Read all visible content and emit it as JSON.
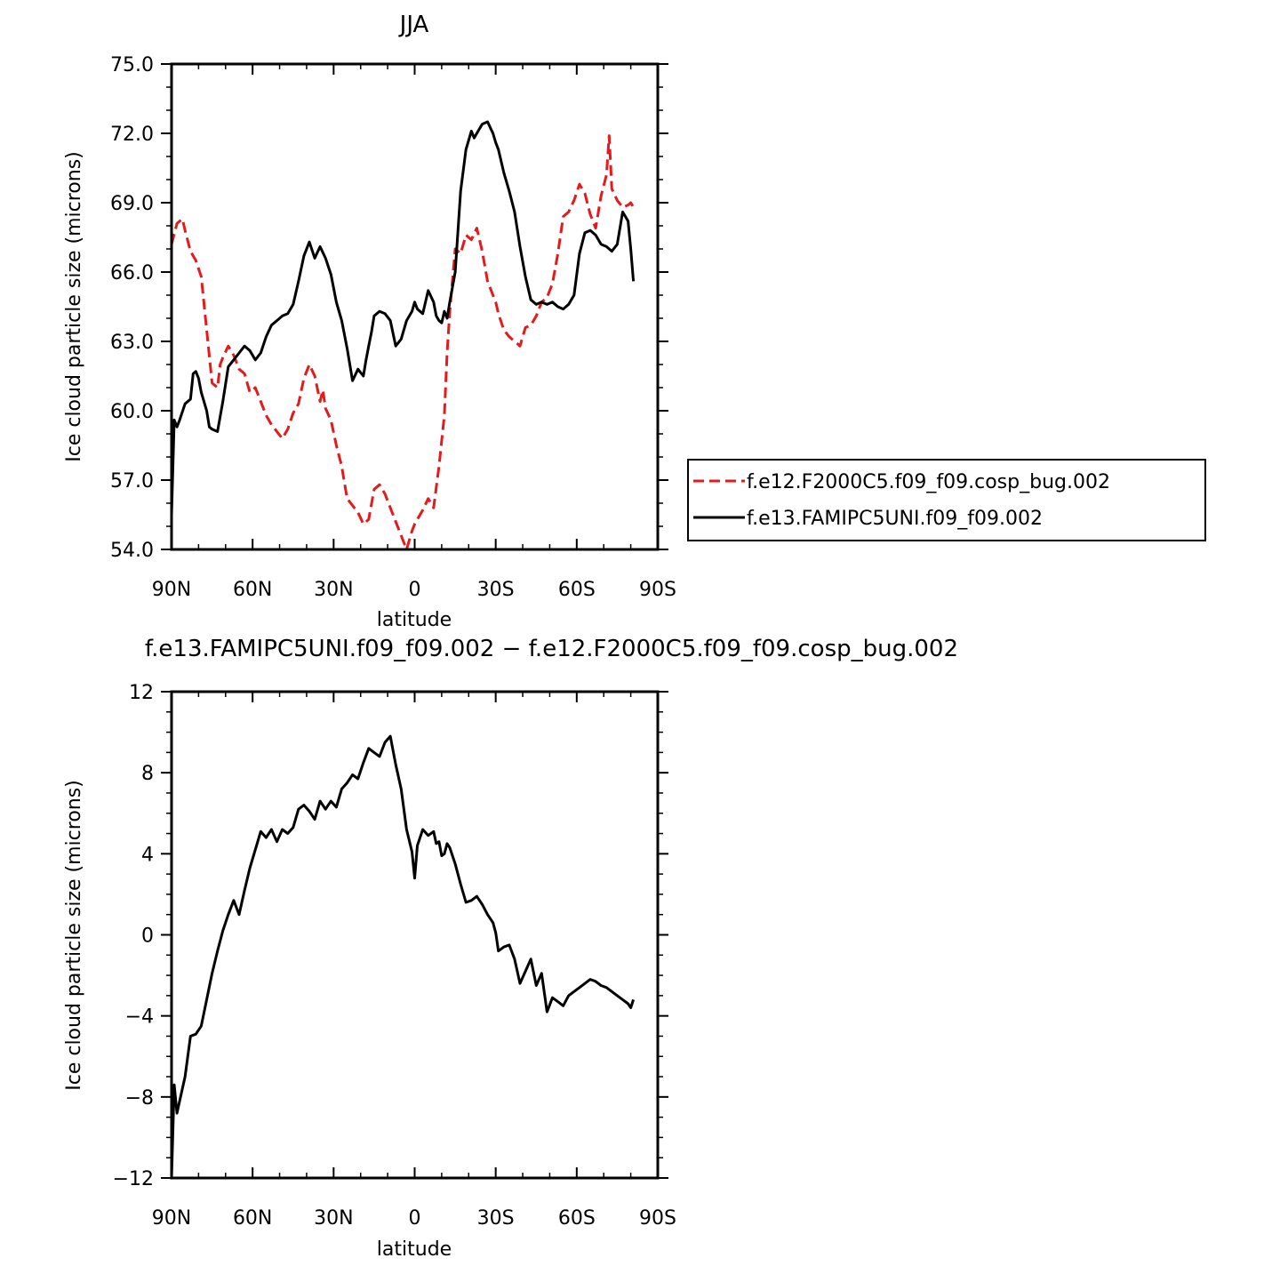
{
  "colors": {
    "dashed_series": "#e41a1c",
    "solid_series": "#000000",
    "background": "#ffffff"
  },
  "chart_data": [
    {
      "type": "line",
      "title": "JJA",
      "xlabel": "latitude",
      "ylabel": "Ice cloud particle size (microns)",
      "xlim": [
        -90,
        90
      ],
      "ylim": [
        54.0,
        75.0
      ],
      "x_ticks": [
        -90,
        -60,
        -30,
        0,
        30,
        60,
        90
      ],
      "x_tick_labels": [
        "90N",
        "60N",
        "30N",
        "0",
        "30S",
        "60S",
        "90S"
      ],
      "y_ticks": [
        54,
        57,
        60,
        63,
        66,
        69,
        72,
        75
      ],
      "y_tick_labels": [
        "54.0",
        "57.0",
        "60.0",
        "63.0",
        "66.0",
        "69.0",
        "72.0",
        "75.0"
      ],
      "grid": false,
      "legend_position": "right",
      "series": [
        {
          "name": "f.e12.F2000C5.f09_f09.cosp_bug.002",
          "style": "dashed",
          "color": "#e41a1c",
          "x": [
            -90,
            -88,
            -86,
            -85,
            -83,
            -81,
            -79,
            -77,
            -75,
            -73,
            -72,
            -71,
            -69,
            -67,
            -65,
            -63,
            -61,
            -59,
            -57,
            -55,
            -53,
            -51,
            -49,
            -47,
            -45,
            -43,
            -41,
            -39,
            -37,
            -35,
            -34,
            -33,
            -31,
            -29,
            -27,
            -25,
            -23,
            -21,
            -19,
            -17,
            -15,
            -13,
            -11,
            -9,
            -7,
            -5,
            -3,
            -1,
            0,
            1,
            3,
            5,
            7,
            9,
            11,
            12,
            13,
            15,
            17,
            19,
            21,
            23,
            25,
            27,
            29,
            30,
            31,
            33,
            35,
            37,
            39,
            41,
            43,
            45,
            47,
            49,
            51,
            53,
            55,
            57,
            59,
            61,
            63,
            65,
            67,
            69,
            71,
            72,
            73,
            75,
            77,
            79,
            80,
            81
          ],
          "values": [
            67.2,
            68.1,
            68.3,
            67.8,
            66.9,
            66.5,
            65.8,
            63.5,
            61.2,
            61.0,
            62.0,
            62.3,
            62.8,
            62.4,
            61.8,
            61.6,
            60.8,
            61.0,
            60.4,
            59.8,
            59.4,
            59.1,
            58.8,
            59.2,
            59.9,
            60.3,
            61.4,
            62.0,
            61.5,
            60.4,
            60.9,
            60.1,
            59.6,
            58.5,
            57.6,
            56.2,
            55.9,
            55.6,
            55.1,
            55.3,
            56.6,
            56.8,
            56.4,
            55.8,
            55.2,
            54.6,
            54.0,
            54.8,
            55.1,
            55.3,
            55.7,
            56.2,
            55.8,
            57.6,
            59.8,
            62.5,
            64.3,
            67.0,
            66.8,
            67.6,
            67.4,
            67.9,
            66.9,
            65.6,
            65.0,
            64.7,
            64.2,
            63.5,
            63.2,
            63.0,
            62.8,
            63.6,
            63.7,
            64.1,
            64.7,
            64.9,
            65.5,
            66.8,
            68.4,
            68.6,
            69.1,
            69.8,
            69.4,
            68.5,
            67.9,
            69.3,
            70.2,
            71.9,
            69.6,
            69.1,
            68.8,
            68.9,
            69.0,
            68.8
          ]
        },
        {
          "name": "f.e13.FAMIPC5UNI.f09_f09.002",
          "style": "solid",
          "color": "#000000",
          "x": [
            -90,
            -89,
            -88,
            -87,
            -85,
            -83,
            -82,
            -81,
            -80,
            -79,
            -77,
            -76,
            -75,
            -73,
            -71,
            -69,
            -67,
            -65,
            -63,
            -61,
            -59,
            -57,
            -55,
            -53,
            -51,
            -49,
            -47,
            -45,
            -43,
            -41,
            -39,
            -37,
            -35,
            -33,
            -31,
            -29,
            -27,
            -25,
            -23,
            -21,
            -19,
            -18,
            -17,
            -16,
            -15,
            -13,
            -11,
            -9,
            -7,
            -5,
            -3,
            -1,
            0,
            1,
            3,
            5,
            7,
            8,
            9,
            10,
            11,
            12,
            13,
            15,
            17,
            19,
            21,
            22,
            23,
            25,
            27,
            29,
            30,
            31,
            33,
            35,
            37,
            39,
            41,
            43,
            45,
            47,
            49,
            51,
            53,
            55,
            57,
            59,
            61,
            63,
            65,
            67,
            69,
            71,
            73,
            75,
            77,
            79,
            80,
            81
          ],
          "values": [
            55.5,
            59.6,
            59.3,
            59.6,
            60.3,
            60.5,
            61.6,
            61.7,
            61.4,
            60.8,
            60.0,
            59.3,
            59.2,
            59.1,
            60.4,
            61.9,
            62.2,
            62.5,
            62.8,
            62.6,
            62.2,
            62.5,
            63.2,
            63.7,
            63.9,
            64.1,
            64.2,
            64.6,
            65.6,
            66.7,
            67.3,
            66.6,
            67.1,
            66.6,
            65.9,
            64.7,
            63.9,
            62.7,
            61.3,
            61.8,
            61.5,
            62.2,
            62.8,
            63.4,
            64.1,
            64.3,
            64.2,
            63.9,
            62.8,
            63.1,
            63.9,
            64.3,
            64.7,
            64.4,
            64.2,
            65.2,
            64.7,
            64.1,
            63.9,
            63.8,
            64.3,
            64.0,
            64.7,
            66.0,
            69.5,
            71.3,
            72.1,
            71.8,
            72.0,
            72.4,
            72.5,
            72.0,
            71.6,
            71.3,
            70.3,
            69.5,
            68.6,
            67.1,
            65.8,
            64.8,
            64.6,
            64.7,
            64.6,
            64.7,
            64.5,
            64.4,
            64.6,
            65.0,
            66.8,
            67.7,
            67.8,
            67.6,
            67.2,
            67.1,
            66.9,
            67.2,
            68.6,
            68.2,
            67.0,
            65.6
          ]
        }
      ]
    },
    {
      "type": "line",
      "title": "f.e13.FAMIPC5UNI.f09_f09.002 − f.e12.F2000C5.f09_f09.cosp_bug.002",
      "xlabel": "latitude",
      "ylabel": "Ice cloud particle size (microns)",
      "xlim": [
        -90,
        90
      ],
      "ylim": [
        -12,
        12
      ],
      "x_ticks": [
        -90,
        -60,
        -30,
        0,
        30,
        60,
        90
      ],
      "x_tick_labels": [
        "90N",
        "60N",
        "30N",
        "0",
        "30S",
        "60S",
        "90S"
      ],
      "y_ticks": [
        -12,
        -8,
        -4,
        0,
        4,
        8,
        12
      ],
      "y_tick_labels": [
        "−12",
        "−8",
        "−4",
        "0",
        "4",
        "8",
        "12"
      ],
      "grid": false,
      "series": [
        {
          "style": "solid",
          "color": "#000000",
          "x": [
            -90,
            -89,
            -88,
            -87,
            -85,
            -83,
            -81,
            -79,
            -77,
            -75,
            -73,
            -71,
            -69,
            -67,
            -65,
            -63,
            -61,
            -59,
            -57,
            -55,
            -53,
            -51,
            -49,
            -47,
            -45,
            -43,
            -41,
            -39,
            -37,
            -35,
            -33,
            -31,
            -29,
            -27,
            -25,
            -23,
            -21,
            -19,
            -17,
            -15,
            -13,
            -11,
            -9,
            -7,
            -5,
            -3,
            -1,
            0,
            1,
            3,
            5,
            7,
            8,
            9,
            10,
            11,
            12,
            13,
            15,
            17,
            19,
            21,
            23,
            25,
            27,
            29,
            30,
            31,
            33,
            35,
            37,
            39,
            41,
            43,
            45,
            47,
            49,
            51,
            53,
            55,
            57,
            59,
            61,
            63,
            65,
            67,
            69,
            71,
            73,
            75,
            77,
            79,
            80,
            81
          ],
          "values": [
            -12.0,
            -7.4,
            -8.8,
            -8.2,
            -7.0,
            -5.0,
            -4.9,
            -4.5,
            -3.2,
            -1.9,
            -0.8,
            0.2,
            1.0,
            1.7,
            1.0,
            2.2,
            3.3,
            4.2,
            5.1,
            4.8,
            5.2,
            4.6,
            5.2,
            5.0,
            5.3,
            6.2,
            6.4,
            6.1,
            5.7,
            6.6,
            6.2,
            6.6,
            6.3,
            7.2,
            7.5,
            7.9,
            7.7,
            8.5,
            9.2,
            9.0,
            8.8,
            9.5,
            9.8,
            8.4,
            7.2,
            5.2,
            4.1,
            2.8,
            4.4,
            5.2,
            4.9,
            5.1,
            4.5,
            4.6,
            3.9,
            4.0,
            4.5,
            4.3,
            3.5,
            2.5,
            1.6,
            1.7,
            1.9,
            1.5,
            1.0,
            0.6,
            0.1,
            -0.8,
            -0.6,
            -0.5,
            -1.2,
            -2.4,
            -1.8,
            -1.2,
            -2.5,
            -1.9,
            -3.8,
            -3.1,
            -3.3,
            -3.5,
            -3.0,
            -2.8,
            -2.6,
            -2.4,
            -2.2,
            -2.3,
            -2.5,
            -2.6,
            -2.8,
            -3.0,
            -3.2,
            -3.4,
            -3.6,
            -3.2
          ]
        }
      ]
    }
  ]
}
